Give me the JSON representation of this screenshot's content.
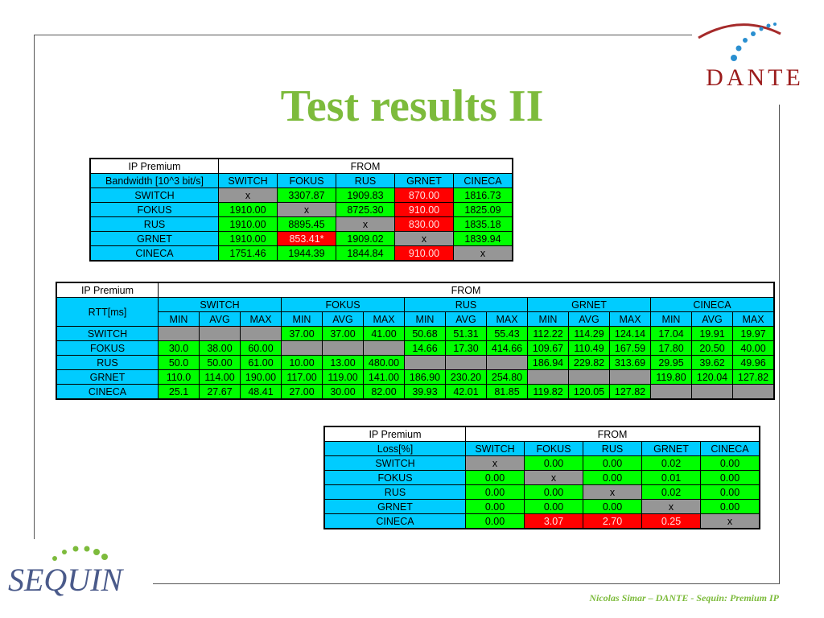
{
  "header": {
    "logo": "DANTE",
    "title": "Test results II"
  },
  "colors": {
    "header": "#00ccff",
    "ok": "#00ff00",
    "bad": "#ff0000",
    "none": "#969696",
    "corner": "#ffffff"
  },
  "bandwidth_table": {
    "corner": "IP Premium",
    "from": "FROM",
    "metric": "Bandwidth [10^3 bit/s]",
    "columns": [
      "SWITCH",
      "FOKUS",
      "RUS",
      "GRNET",
      "CINECA"
    ],
    "rows": [
      {
        "label": "SWITCH",
        "cells": [
          "x",
          "3307.87",
          "1909.83",
          "870.00",
          "1816.73"
        ],
        "status": [
          "none",
          "ok",
          "ok",
          "bad",
          "ok"
        ]
      },
      {
        "label": "FOKUS",
        "cells": [
          "1910.00",
          "x",
          "8725.30",
          "910.00",
          "1825.09"
        ],
        "status": [
          "ok",
          "none",
          "ok",
          "bad",
          "ok"
        ]
      },
      {
        "label": "RUS",
        "cells": [
          "1910.00",
          "8895.45",
          "x",
          "830.00",
          "1835.18"
        ],
        "status": [
          "ok",
          "ok",
          "none",
          "bad",
          "ok"
        ]
      },
      {
        "label": "GRNET",
        "cells": [
          "1910.00",
          "853.41*",
          "1909.02",
          "x",
          "1839.94"
        ],
        "status": [
          "ok",
          "bad",
          "ok",
          "none",
          "ok"
        ]
      },
      {
        "label": "CINECA",
        "cells": [
          "1751.46",
          "1944.39",
          "1844.84",
          "910.00",
          "x"
        ],
        "status": [
          "ok",
          "ok",
          "ok",
          "bad",
          "none"
        ]
      }
    ]
  },
  "rtt_table": {
    "corner": "IP Premium",
    "from": "FROM",
    "metric": "RTT[ms]",
    "columns": [
      "SWITCH",
      "FOKUS",
      "RUS",
      "GRNET",
      "CINECA"
    ],
    "sub_columns": [
      "MIN",
      "AVG",
      "MAX"
    ],
    "rows": [
      {
        "label": "SWITCH",
        "cells": [
          null,
          null,
          null,
          "37.00",
          "37.00",
          "41.00",
          "50.68",
          "51.31",
          "55.43",
          "112.22",
          "114.29",
          "124.14",
          "17.04",
          "19.91",
          "19.97"
        ],
        "status": [
          "none",
          "none",
          "none",
          "ok",
          "ok",
          "ok",
          "ok",
          "ok",
          "ok",
          "ok",
          "ok",
          "ok",
          "ok",
          "ok",
          "ok"
        ]
      },
      {
        "label": "FOKUS",
        "cells": [
          "30.0",
          "38.00",
          "60.00",
          null,
          null,
          null,
          "14.66",
          "17.30",
          "414.66",
          "109.67",
          "110.49",
          "167.59",
          "17.80",
          "20.50",
          "40.00"
        ],
        "status": [
          "ok",
          "ok",
          "ok",
          "none",
          "none",
          "none",
          "ok",
          "ok",
          "ok",
          "ok",
          "ok",
          "ok",
          "ok",
          "ok",
          "ok"
        ]
      },
      {
        "label": "RUS",
        "cells": [
          "50.0",
          "50.00",
          "61.00",
          "10.00",
          "13.00",
          "480.00",
          null,
          null,
          null,
          "186.94",
          "229.82",
          "313.69",
          "29.95",
          "39.62",
          "49.96"
        ],
        "status": [
          "ok",
          "ok",
          "ok",
          "ok",
          "ok",
          "ok",
          "none",
          "none",
          "none",
          "ok",
          "ok",
          "ok",
          "ok",
          "ok",
          "ok"
        ]
      },
      {
        "label": "GRNET",
        "cells": [
          "110.0",
          "114.00",
          "190.00",
          "117.00",
          "119.00",
          "141.00",
          "186.90",
          "230.20",
          "254.80",
          null,
          null,
          null,
          "119.80",
          "120.04",
          "127.82"
        ],
        "status": [
          "ok",
          "ok",
          "ok",
          "ok",
          "ok",
          "ok",
          "ok",
          "ok",
          "ok",
          "none",
          "none",
          "none",
          "ok",
          "ok",
          "ok"
        ]
      },
      {
        "label": "CINECA",
        "cells": [
          "25.1",
          "27.67",
          "48.41",
          "27.00",
          "30.00",
          "82.00",
          "39.93",
          "42.01",
          "81.85",
          "119.82",
          "120.05",
          "127.82",
          null,
          null,
          null
        ],
        "status": [
          "ok",
          "ok",
          "ok",
          "ok",
          "ok",
          "ok",
          "ok",
          "ok",
          "ok",
          "ok",
          "ok",
          "ok",
          "none",
          "none",
          "none"
        ]
      }
    ]
  },
  "loss_table": {
    "corner": "IP Premium",
    "from": "FROM",
    "metric": "Loss[%]",
    "columns": [
      "SWITCH",
      "FOKUS",
      "RUS",
      "GRNET",
      "CINECA"
    ],
    "rows": [
      {
        "label": "SWITCH",
        "cells": [
          "x",
          "0.00",
          "0.00",
          "0.02",
          "0.00"
        ],
        "status": [
          "none",
          "ok",
          "ok",
          "ok",
          "ok"
        ]
      },
      {
        "label": "FOKUS",
        "cells": [
          "0.00",
          "x",
          "0.00",
          "0.01",
          "0.00"
        ],
        "status": [
          "ok",
          "none",
          "ok",
          "ok",
          "ok"
        ]
      },
      {
        "label": "RUS",
        "cells": [
          "0.00",
          "0.00",
          "x",
          "0.02",
          "0.00"
        ],
        "status": [
          "ok",
          "ok",
          "none",
          "ok",
          "ok"
        ]
      },
      {
        "label": "GRNET",
        "cells": [
          "0.00",
          "0.00",
          "0.00",
          "x",
          "0.00"
        ],
        "status": [
          "ok",
          "ok",
          "ok",
          "none",
          "ok"
        ]
      },
      {
        "label": "CINECA",
        "cells": [
          "0.00",
          "3.07",
          "2.70",
          "0.25",
          "x"
        ],
        "status": [
          "ok",
          "bad",
          "bad",
          "bad",
          "none"
        ]
      }
    ]
  },
  "footer": {
    "logo": "SEQUIN",
    "credit": "Nicolas Simar – DANTE - Sequin: Premium IP"
  }
}
